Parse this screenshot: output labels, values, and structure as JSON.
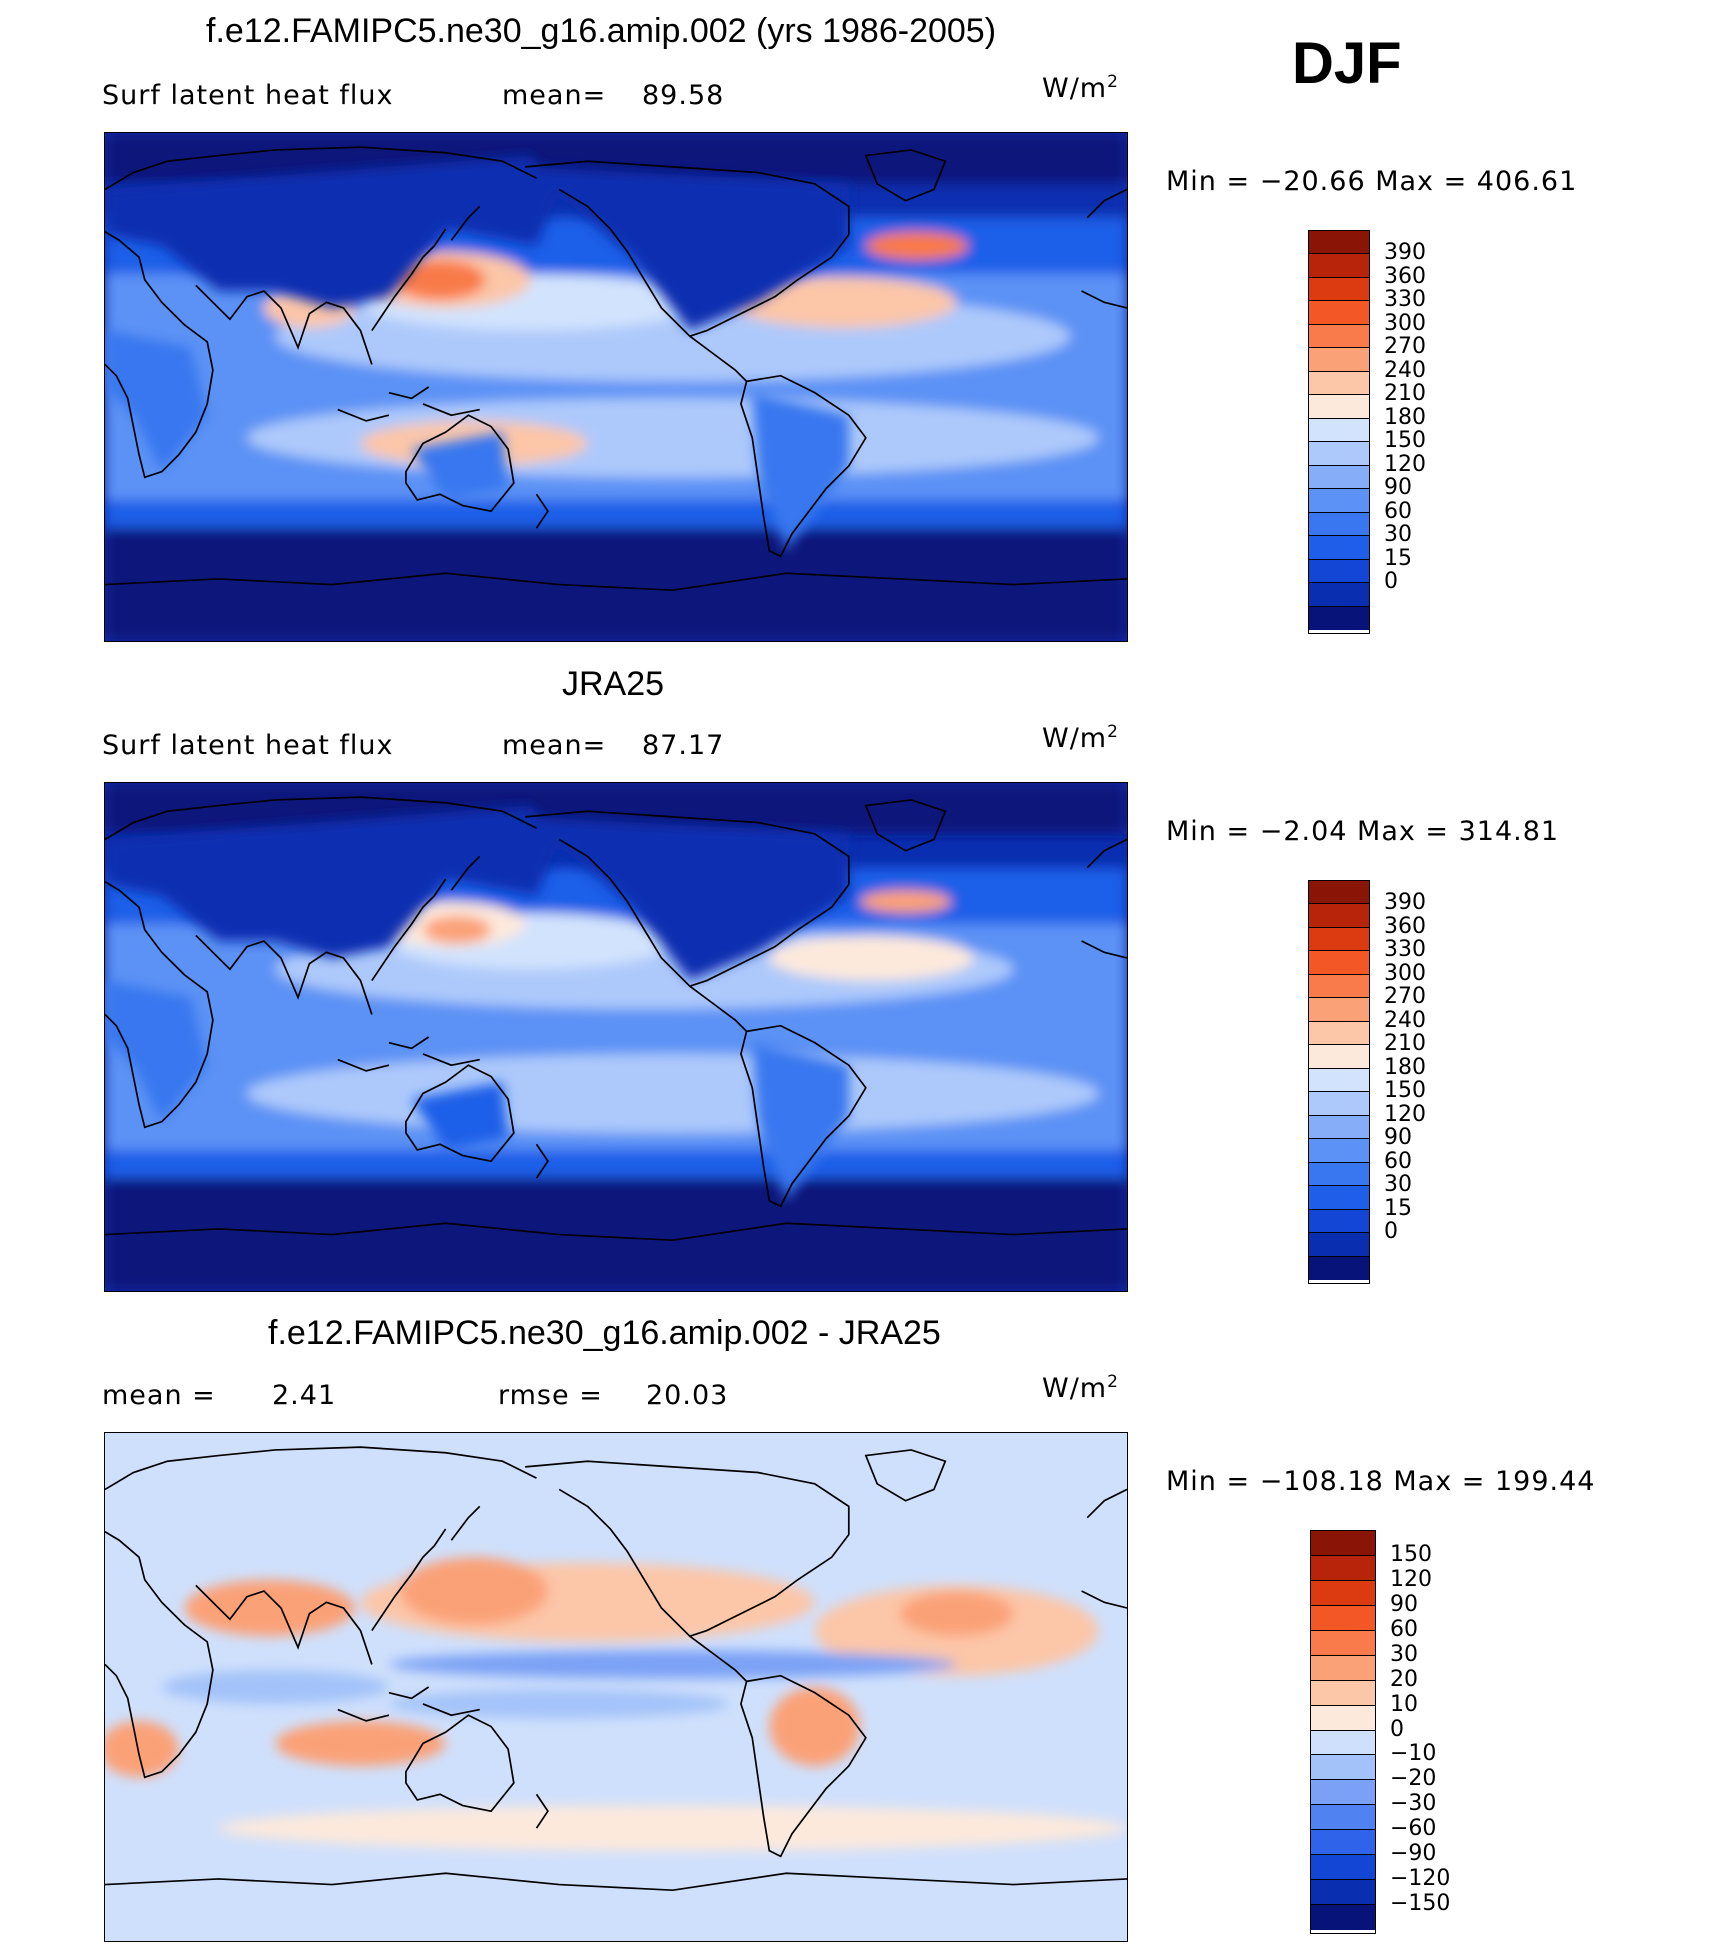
{
  "season": "DJF",
  "units": "W/m²",
  "units_main": "W/m",
  "units_sup": "2",
  "colors": {
    "abs_scale": [
      "#08137a",
      "#0a2eb0",
      "#1446d6",
      "#1f5ee8",
      "#3877ef",
      "#5c92f5",
      "#86aef8",
      "#adc9fb",
      "#d2e3fd",
      "#fde9dc",
      "#fcc6a8",
      "#fba177",
      "#f97a4a",
      "#f35725",
      "#dc3a11",
      "#b8240a",
      "#8a1405"
    ],
    "diff_scale": [
      "#08137a",
      "#0a2eb0",
      "#1446d6",
      "#2f63ea",
      "#5083f1",
      "#7aa1f5",
      "#a3c2f9",
      "#cfe0fc",
      "#fde9dc",
      "#fcc6a8",
      "#fba177",
      "#f97a4a",
      "#f35725",
      "#dc3a11",
      "#b8240a",
      "#8a1405"
    ],
    "coast": "#000000"
  },
  "panels": [
    {
      "title": "f.e12.FAMIPC5.ne30_g16.amip.002 (yrs 1986-2005)",
      "left_label": "Surf  latent  heat  flux",
      "stat_label": "mean=",
      "stat_value": "89.58",
      "minmax": "Min  =  −20.66  Max  =  406.61",
      "palette": "abs",
      "ticks": [
        "390",
        "360",
        "330",
        "300",
        "270",
        "240",
        "210",
        "180",
        "150",
        "120",
        "90",
        "60",
        "30",
        "15",
        "0"
      ]
    },
    {
      "title": "JRA25",
      "left_label": "Surf  latent  heat  flux",
      "stat_label": "mean=",
      "stat_value": "87.17",
      "minmax": "Min  =    −2.04  Max  =  314.81",
      "palette": "abs",
      "ticks": [
        "390",
        "360",
        "330",
        "300",
        "270",
        "240",
        "210",
        "180",
        "150",
        "120",
        "90",
        "60",
        "30",
        "15",
        "0"
      ]
    },
    {
      "title": "f.e12.FAMIPC5.ne30_g16.amip.002 - JRA25",
      "left_label": "mean  =",
      "left_value": "2.41",
      "stat_label": "rmse  =",
      "stat_value": "20.03",
      "minmax": "Min  =  −108.18  Max  =  199.44",
      "palette": "diff",
      "ticks": [
        "150",
        "120",
        "90",
        "60",
        "30",
        "20",
        "10",
        "0",
        "−10",
        "−20",
        "−30",
        "−60",
        "−90",
        "−120",
        "−150"
      ]
    }
  ],
  "chart_data": [
    {
      "type": "heatmap",
      "title": "f.e12.FAMIPC5.ne30_g16.amip.002 (yrs 1986-2005)",
      "subtitle": "Surf latent heat flux",
      "units": "W/m2",
      "mean": 89.58,
      "min": -20.66,
      "max": 406.61,
      "levels": [
        0,
        15,
        30,
        60,
        90,
        120,
        150,
        180,
        210,
        240,
        270,
        300,
        330,
        360,
        390
      ]
    },
    {
      "type": "heatmap",
      "title": "JRA25",
      "subtitle": "Surf latent heat flux",
      "units": "W/m2",
      "mean": 87.17,
      "min": -2.04,
      "max": 314.81,
      "levels": [
        0,
        15,
        30,
        60,
        90,
        120,
        150,
        180,
        210,
        240,
        270,
        300,
        330,
        360,
        390
      ]
    },
    {
      "type": "heatmap",
      "title": "f.e12.FAMIPC5.ne30_g16.amip.002 - JRA25",
      "units": "W/m2",
      "mean": 2.41,
      "rmse": 20.03,
      "min": -108.18,
      "max": 199.44,
      "levels": [
        -150,
        -120,
        -90,
        -60,
        -30,
        -20,
        -10,
        0,
        10,
        20,
        30,
        60,
        90,
        120,
        150
      ]
    }
  ]
}
